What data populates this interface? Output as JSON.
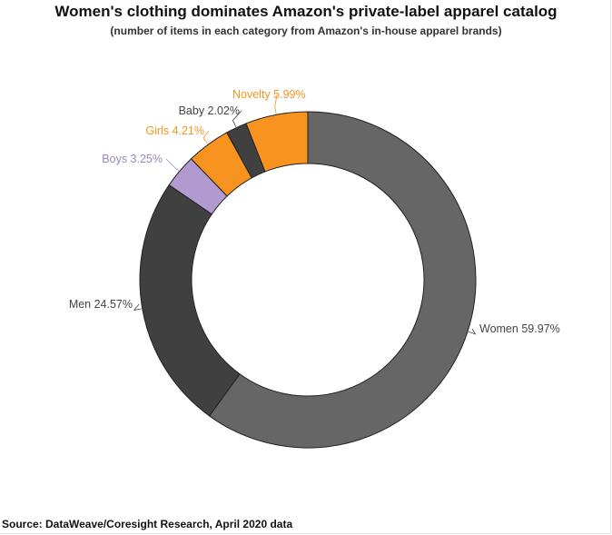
{
  "header": {
    "title": "Women's clothing dominates Amazon's private-label apparel catalog",
    "subtitle": "(number of items in each category from Amazon's in-house apparel brands)"
  },
  "footer": {
    "source": "Source: DataWeave/Coresight Research, April 2020 data"
  },
  "chart_data": {
    "type": "pie",
    "title": "Women's clothing dominates Amazon's private-label apparel catalog",
    "subtitle": "(number of items in each category from Amazon's in-house apparel brands)",
    "donut": true,
    "categories": [
      "Women",
      "Men",
      "Boys",
      "Girls",
      "Baby",
      "Novelty"
    ],
    "values": [
      59.97,
      24.57,
      3.25,
      4.21,
      2.02,
      5.99
    ],
    "labels": [
      "Women 59.97%",
      "Men 24.57%",
      "Boys 3.25%",
      "Girls 4.21%",
      "Baby 2.02%",
      "Novelty 5.99%"
    ],
    "colors": [
      "#666666",
      "#404040",
      "#b09ad0",
      "#f7931e",
      "#404040",
      "#f7931e"
    ],
    "label_colors": [
      "#444444",
      "#444444",
      "#9a86c4",
      "#f7931e",
      "#444444",
      "#f7931e"
    ],
    "unit": "%",
    "start_at": "12 o'clock, clockwise"
  }
}
